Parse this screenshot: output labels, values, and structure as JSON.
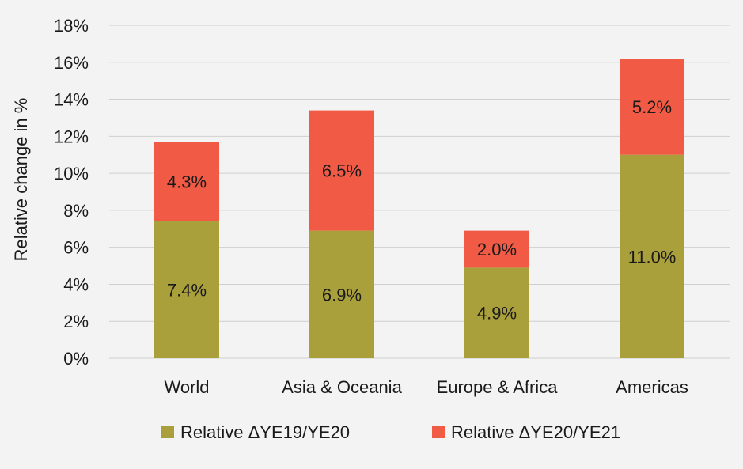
{
  "chart_data": {
    "type": "bar",
    "stacked": true,
    "categories": [
      "World",
      "Asia & Oceania",
      "Europe & Africa",
      "Americas"
    ],
    "series": [
      {
        "name": "Relative ΔYE19/YE20",
        "values": [
          7.4,
          6.9,
          4.9,
          11.0
        ],
        "labels": [
          "7.4%",
          "6.9%",
          "4.9%",
          "11.0%"
        ],
        "color": "#aaa03b"
      },
      {
        "name": "Relative ΔYE20/YE21",
        "values": [
          4.3,
          6.5,
          2.0,
          5.2
        ],
        "labels": [
          "4.3%",
          "6.5%",
          "2.0%",
          "5.2%"
        ],
        "color": "#f15a45"
      }
    ],
    "ylabel": "Relative change in %",
    "ylim": [
      0,
      18
    ],
    "yticks": [
      0,
      2,
      4,
      6,
      8,
      10,
      12,
      14,
      16,
      18
    ],
    "ytick_labels": [
      "0%",
      "2%",
      "4%",
      "6%",
      "8%",
      "10%",
      "12%",
      "14%",
      "16%",
      "18%"
    ],
    "grid": true,
    "legend_position": "bottom"
  }
}
